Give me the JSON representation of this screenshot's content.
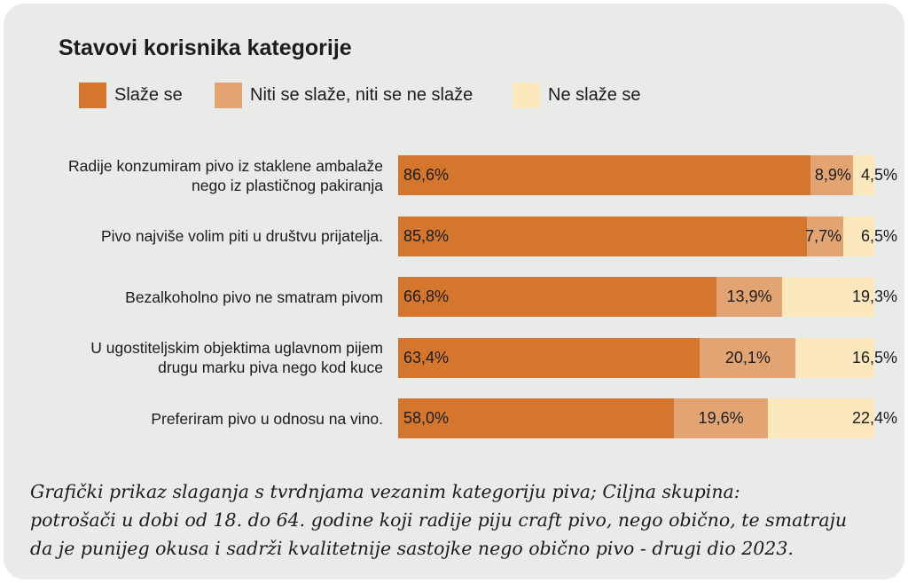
{
  "chart_data": {
    "type": "bar",
    "orientation": "horizontal",
    "stacked": true,
    "title": "Stavovi korisnika kategorije",
    "xlabel": "",
    "ylabel": "",
    "xlim": [
      0,
      100
    ],
    "grid": false,
    "legend_position": "top-left",
    "categories": [
      [
        "Radije konzumiram pivo iz staklene ambalaže",
        "nego iz plastičnog pakiranja"
      ],
      [
        "Pivo najviše volim piti u društvu prijatelja."
      ],
      [
        "Bezalkoholno pivo ne smatram pivom"
      ],
      [
        "U ugostiteljskim objektima uglavnom pijem",
        "drugu marku piva nego kod kuce"
      ],
      [
        "Preferiram pivo u odnosu na vino."
      ]
    ],
    "series": [
      {
        "name": "Slaže se",
        "color": "#d4762e",
        "values": [
          86.6,
          85.8,
          66.8,
          63.4,
          58.0
        ],
        "labels": [
          "86,6%",
          "85,8%",
          "66,8%",
          "63,4%",
          "58,0%"
        ]
      },
      {
        "name": "Niti se slaže, niti se ne slaže",
        "color": "#e3a474",
        "values": [
          8.9,
          7.7,
          13.9,
          20.1,
          19.6
        ],
        "labels": [
          "8,9%",
          "7,7%",
          "13,9%",
          "20,1%",
          "19,6%"
        ]
      },
      {
        "name": "Ne slaže se",
        "color": "#fde7bd",
        "values": [
          4.5,
          6.5,
          19.3,
          16.5,
          22.4
        ],
        "labels": [
          "4,5%",
          "6,5%",
          "19,3%",
          "16,5%",
          "22,4%"
        ]
      }
    ]
  },
  "caption": [
    "Grafički prikaz slaganja s tvrdnjama vezanim kategoriju piva; Ciljna skupina:",
    "potrošači u dobi od 18. do 64. godine koji radije piju craft pivo, nego obično, te smatraju",
    "da je punijeg okusa i sadrži kvalitetnije sastojke nego obično pivo - drugi dio 2023."
  ]
}
